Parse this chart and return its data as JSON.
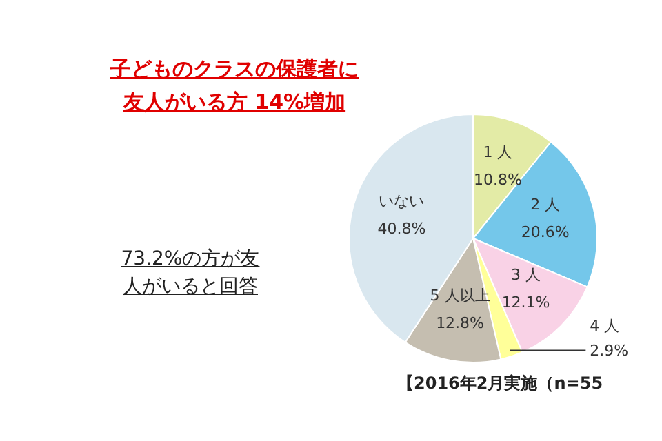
{
  "chart_data": {
    "type": "pie",
    "title": "子どものクラスの保護者に友人がいる方 14%増加",
    "categories": [
      "1 人",
      "2 人",
      "3 人",
      "4 人",
      "5 人以上",
      "いない"
    ],
    "values": [
      10.8,
      20.6,
      12.1,
      2.9,
      12.8,
      40.8
    ],
    "value_labels": [
      "10.8%",
      "20.6%",
      "12.1%",
      "2.9%",
      "12.8%",
      "40.8%"
    ],
    "colors": [
      "#e3eba6",
      "#74c7ea",
      "#f9d2e6",
      "#ffff99",
      "#c5beb0",
      "#d9e7ef"
    ],
    "annotations": [
      "73.2%の方が友人がいると回答",
      "【2016年2月実施（n=55"
    ]
  }
}
